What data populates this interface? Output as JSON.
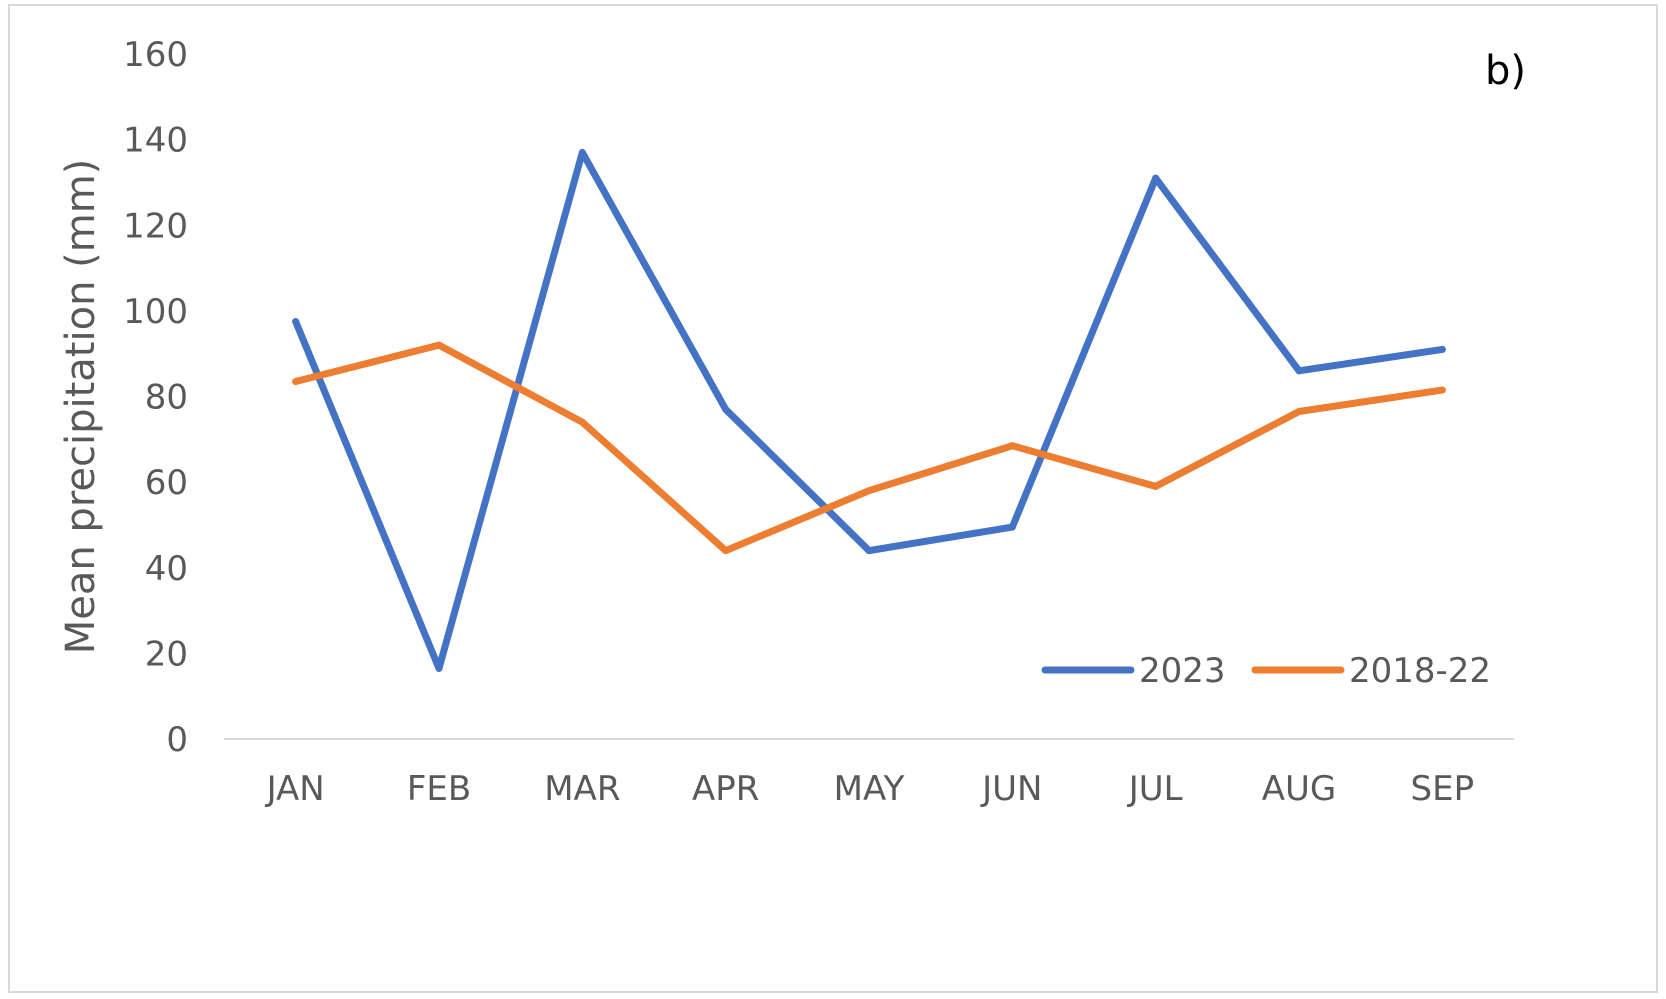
{
  "chart_data": {
    "type": "line",
    "panel_label": "b)",
    "title": "",
    "xlabel": "",
    "ylabel": "Mean precipitation (mm)",
    "categories": [
      "JAN",
      "FEB",
      "MAR",
      "APR",
      "MAY",
      "JUN",
      "JUL",
      "AUG",
      "SEP"
    ],
    "ylim": [
      0,
      160
    ],
    "yticks": [
      0,
      20,
      40,
      60,
      80,
      100,
      120,
      140,
      160
    ],
    "grid": false,
    "legend_position": "bottom-right",
    "series": [
      {
        "name": "2023",
        "color": "#4472c4",
        "values": [
          97.5,
          16.5,
          137,
          77,
          44,
          49.5,
          131,
          86,
          91
        ]
      },
      {
        "name": "2018-22",
        "color": "#ed7d31",
        "values": [
          83.5,
          92,
          74,
          44,
          58,
          68.5,
          59,
          76.5,
          81.5
        ]
      }
    ]
  }
}
